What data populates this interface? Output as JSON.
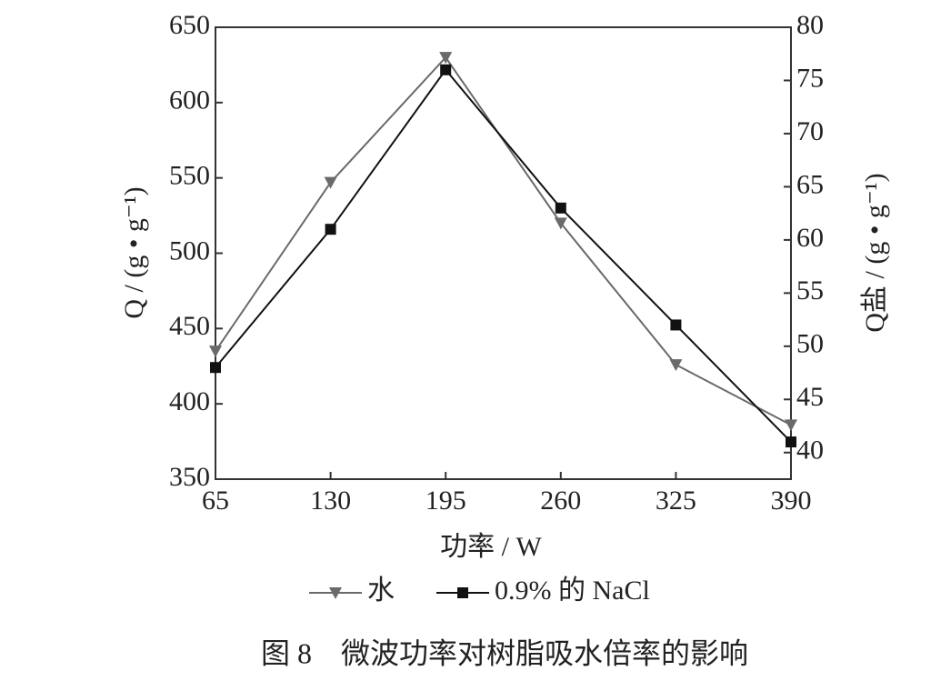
{
  "chart_data": {
    "type": "line",
    "caption": "图 8　微波功率对树脂吸水倍率的影响",
    "xlabel": "功率 / W",
    "ylabel": "Q / (g • g⁻¹)",
    "y2label": "Q盐 / (g • g⁻¹)",
    "x": [
      65,
      130,
      195,
      260,
      325,
      390
    ],
    "xlim": [
      65,
      390
    ],
    "xticks": [
      65,
      130,
      195,
      260,
      325,
      390
    ],
    "ylim": [
      350,
      650
    ],
    "yticks": [
      350,
      400,
      450,
      500,
      550,
      600,
      650
    ],
    "y2lim": [
      37.5,
      80
    ],
    "y2ticks": [
      40,
      45,
      50,
      55,
      60,
      65,
      70,
      75,
      80
    ],
    "legend": "bottom",
    "series": [
      {
        "name": "水",
        "color": "#6a6a6a",
        "marker": "triangle-down",
        "values": [
          435,
          547,
          630,
          520,
          426,
          386
        ]
      },
      {
        "name": "0.9% 的 NaCl",
        "color": "#111111",
        "marker": "square",
        "axis": "y2",
        "values": [
          48,
          61,
          76,
          63,
          52,
          41
        ]
      }
    ]
  }
}
